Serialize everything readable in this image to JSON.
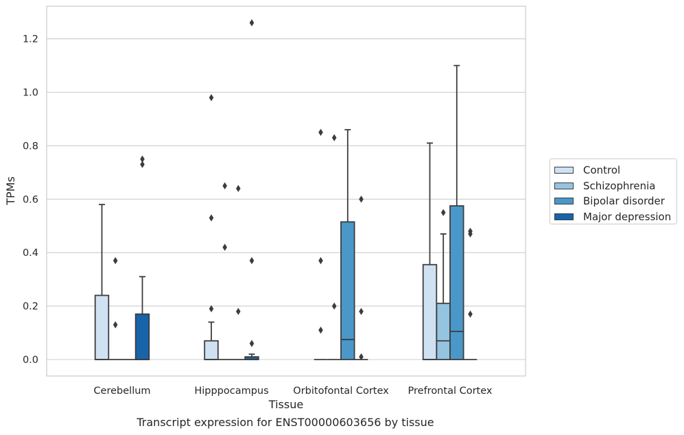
{
  "chart_data": {
    "type": "box",
    "xlabel": "Tissue",
    "ylabel": "TPMs",
    "caption": "Transcript expression for ENST00000603656 by tissue",
    "categories": [
      "Cerebellum",
      "Hipppocampus",
      "Orbitofontal Cortex",
      "Prefrontal Cortex"
    ],
    "ylim": [
      -0.06,
      1.32
    ],
    "yticks": [
      0.0,
      0.2,
      0.4,
      0.6,
      0.8,
      1.0,
      1.2
    ],
    "ytick_labels": [
      "0.0",
      "0.2",
      "0.4",
      "0.6",
      "0.8",
      "1.0",
      "1.2"
    ],
    "grid": "horizontal",
    "legend_position": "right",
    "series": [
      {
        "name": "Control",
        "color": "#d0e1f2",
        "boxes": [
          {
            "q1": 0,
            "median": 0,
            "q3": 0.24,
            "whisker_low": 0,
            "whisker_high": 0.58,
            "outliers": []
          },
          {
            "q1": 0,
            "median": 0,
            "q3": 0.07,
            "whisker_low": 0,
            "whisker_high": 0.14,
            "outliers": [
              0.98,
              0.53,
              0.19
            ]
          },
          {
            "q1": 0,
            "median": 0,
            "q3": 0,
            "whisker_low": 0,
            "whisker_high": 0,
            "outliers": [
              0.85,
              0.37,
              0.11
            ]
          },
          {
            "q1": 0,
            "median": 0,
            "q3": 0.355,
            "whisker_low": 0,
            "whisker_high": 0.81,
            "outliers": []
          }
        ]
      },
      {
        "name": "Schizophrenia",
        "color": "#94c4df",
        "boxes": [
          {
            "q1": 0,
            "median": 0,
            "q3": 0,
            "whisker_low": 0,
            "whisker_high": 0,
            "outliers": [
              0.37,
              0.13
            ]
          },
          {
            "q1": 0,
            "median": 0,
            "q3": 0,
            "whisker_low": 0,
            "whisker_high": 0,
            "outliers": [
              0.65,
              0.42
            ]
          },
          {
            "q1": 0,
            "median": 0,
            "q3": 0,
            "whisker_low": 0,
            "whisker_high": 0,
            "outliers": [
              0.83,
              0.2
            ]
          },
          {
            "q1": 0,
            "median": 0.07,
            "q3": 0.21,
            "whisker_low": 0,
            "whisker_high": 0.47,
            "outliers": [
              0.55
            ]
          }
        ]
      },
      {
        "name": "Bipolar disorder",
        "color": "#4a98c9",
        "boxes": [
          {
            "q1": 0,
            "median": 0,
            "q3": 0,
            "whisker_low": 0,
            "whisker_high": 0,
            "outliers": []
          },
          {
            "q1": 0,
            "median": 0,
            "q3": 0,
            "whisker_low": 0,
            "whisker_high": 0,
            "outliers": [
              0.64,
              0.18
            ]
          },
          {
            "q1": 0,
            "median": 0.075,
            "q3": 0.515,
            "whisker_low": 0,
            "whisker_high": 0.86,
            "outliers": []
          },
          {
            "q1": 0,
            "median": 0.105,
            "q3": 0.575,
            "whisker_low": 0,
            "whisker_high": 1.1,
            "outliers": []
          }
        ]
      },
      {
        "name": "Major depression",
        "color": "#1764ab",
        "boxes": [
          {
            "q1": 0,
            "median": 0,
            "q3": 0.17,
            "whisker_low": 0,
            "whisker_high": 0.31,
            "outliers": [
              0.75,
              0.73
            ]
          },
          {
            "q1": 0,
            "median": 0,
            "q3": 0.01,
            "whisker_low": 0,
            "whisker_high": 0.02,
            "outliers": [
              1.26,
              0.37,
              0.06
            ]
          },
          {
            "q1": 0,
            "median": 0,
            "q3": 0,
            "whisker_low": 0,
            "whisker_high": 0,
            "outliers": [
              0.6,
              0.18,
              0.01
            ]
          },
          {
            "q1": 0,
            "median": 0,
            "q3": 0,
            "whisker_low": 0,
            "whisker_high": 0,
            "outliers": [
              0.48,
              0.47,
              0.17
            ]
          }
        ]
      }
    ]
  }
}
